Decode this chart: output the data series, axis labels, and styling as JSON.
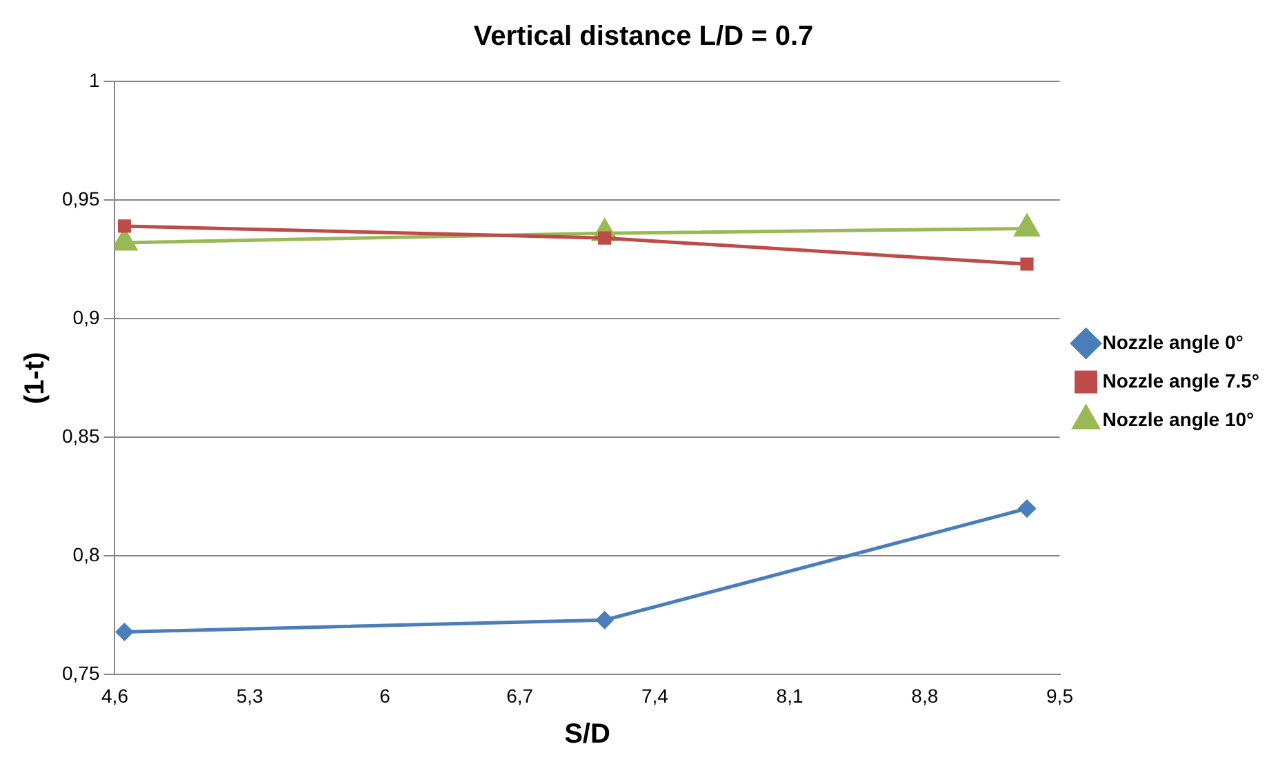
{
  "chart_data": {
    "type": "line",
    "title": "Vertical distance L/D = 0.7",
    "xlabel": "S/D",
    "ylabel": "(1-t)",
    "x": [
      4.65,
      7.14,
      9.33
    ],
    "series": [
      {
        "name": "Nozzle angle 0°",
        "color": "#4a7ebb",
        "marker": "diamond",
        "values": [
          0.768,
          0.773,
          0.82
        ]
      },
      {
        "name": "Nozzle angle 7.5°",
        "color": "#be4b48",
        "marker": "square",
        "values": [
          0.939,
          0.934,
          0.923
        ]
      },
      {
        "name": "Nozzle angle 10°",
        "color": "#98b954",
        "marker": "triangle",
        "values": [
          0.932,
          0.936,
          0.938
        ]
      }
    ],
    "xlim": [
      4.6,
      9.5
    ],
    "xticks": [
      {
        "value": 4.6,
        "label": "4,6"
      },
      {
        "value": 5.3,
        "label": "5,3"
      },
      6,
      {
        "value": 6.7,
        "label": "6,7"
      },
      {
        "value": 7.4,
        "label": "7,4"
      },
      {
        "value": 8.1,
        "label": "8,1"
      },
      {
        "value": 8.8,
        "label": "8,8"
      },
      {
        "value": 9.5,
        "label": "9,5"
      }
    ],
    "ylim": [
      0.75,
      1
    ],
    "yticks": [
      {
        "value": 0.75,
        "label": "0,75"
      },
      {
        "value": 0.8,
        "label": "0,8"
      },
      {
        "value": 0.85,
        "label": "0,85"
      },
      {
        "value": 0.9,
        "label": "0,9"
      },
      {
        "value": 0.95,
        "label": "0,95"
      },
      1
    ],
    "grid": "y",
    "legend": "right",
    "line_style": "solid"
  }
}
